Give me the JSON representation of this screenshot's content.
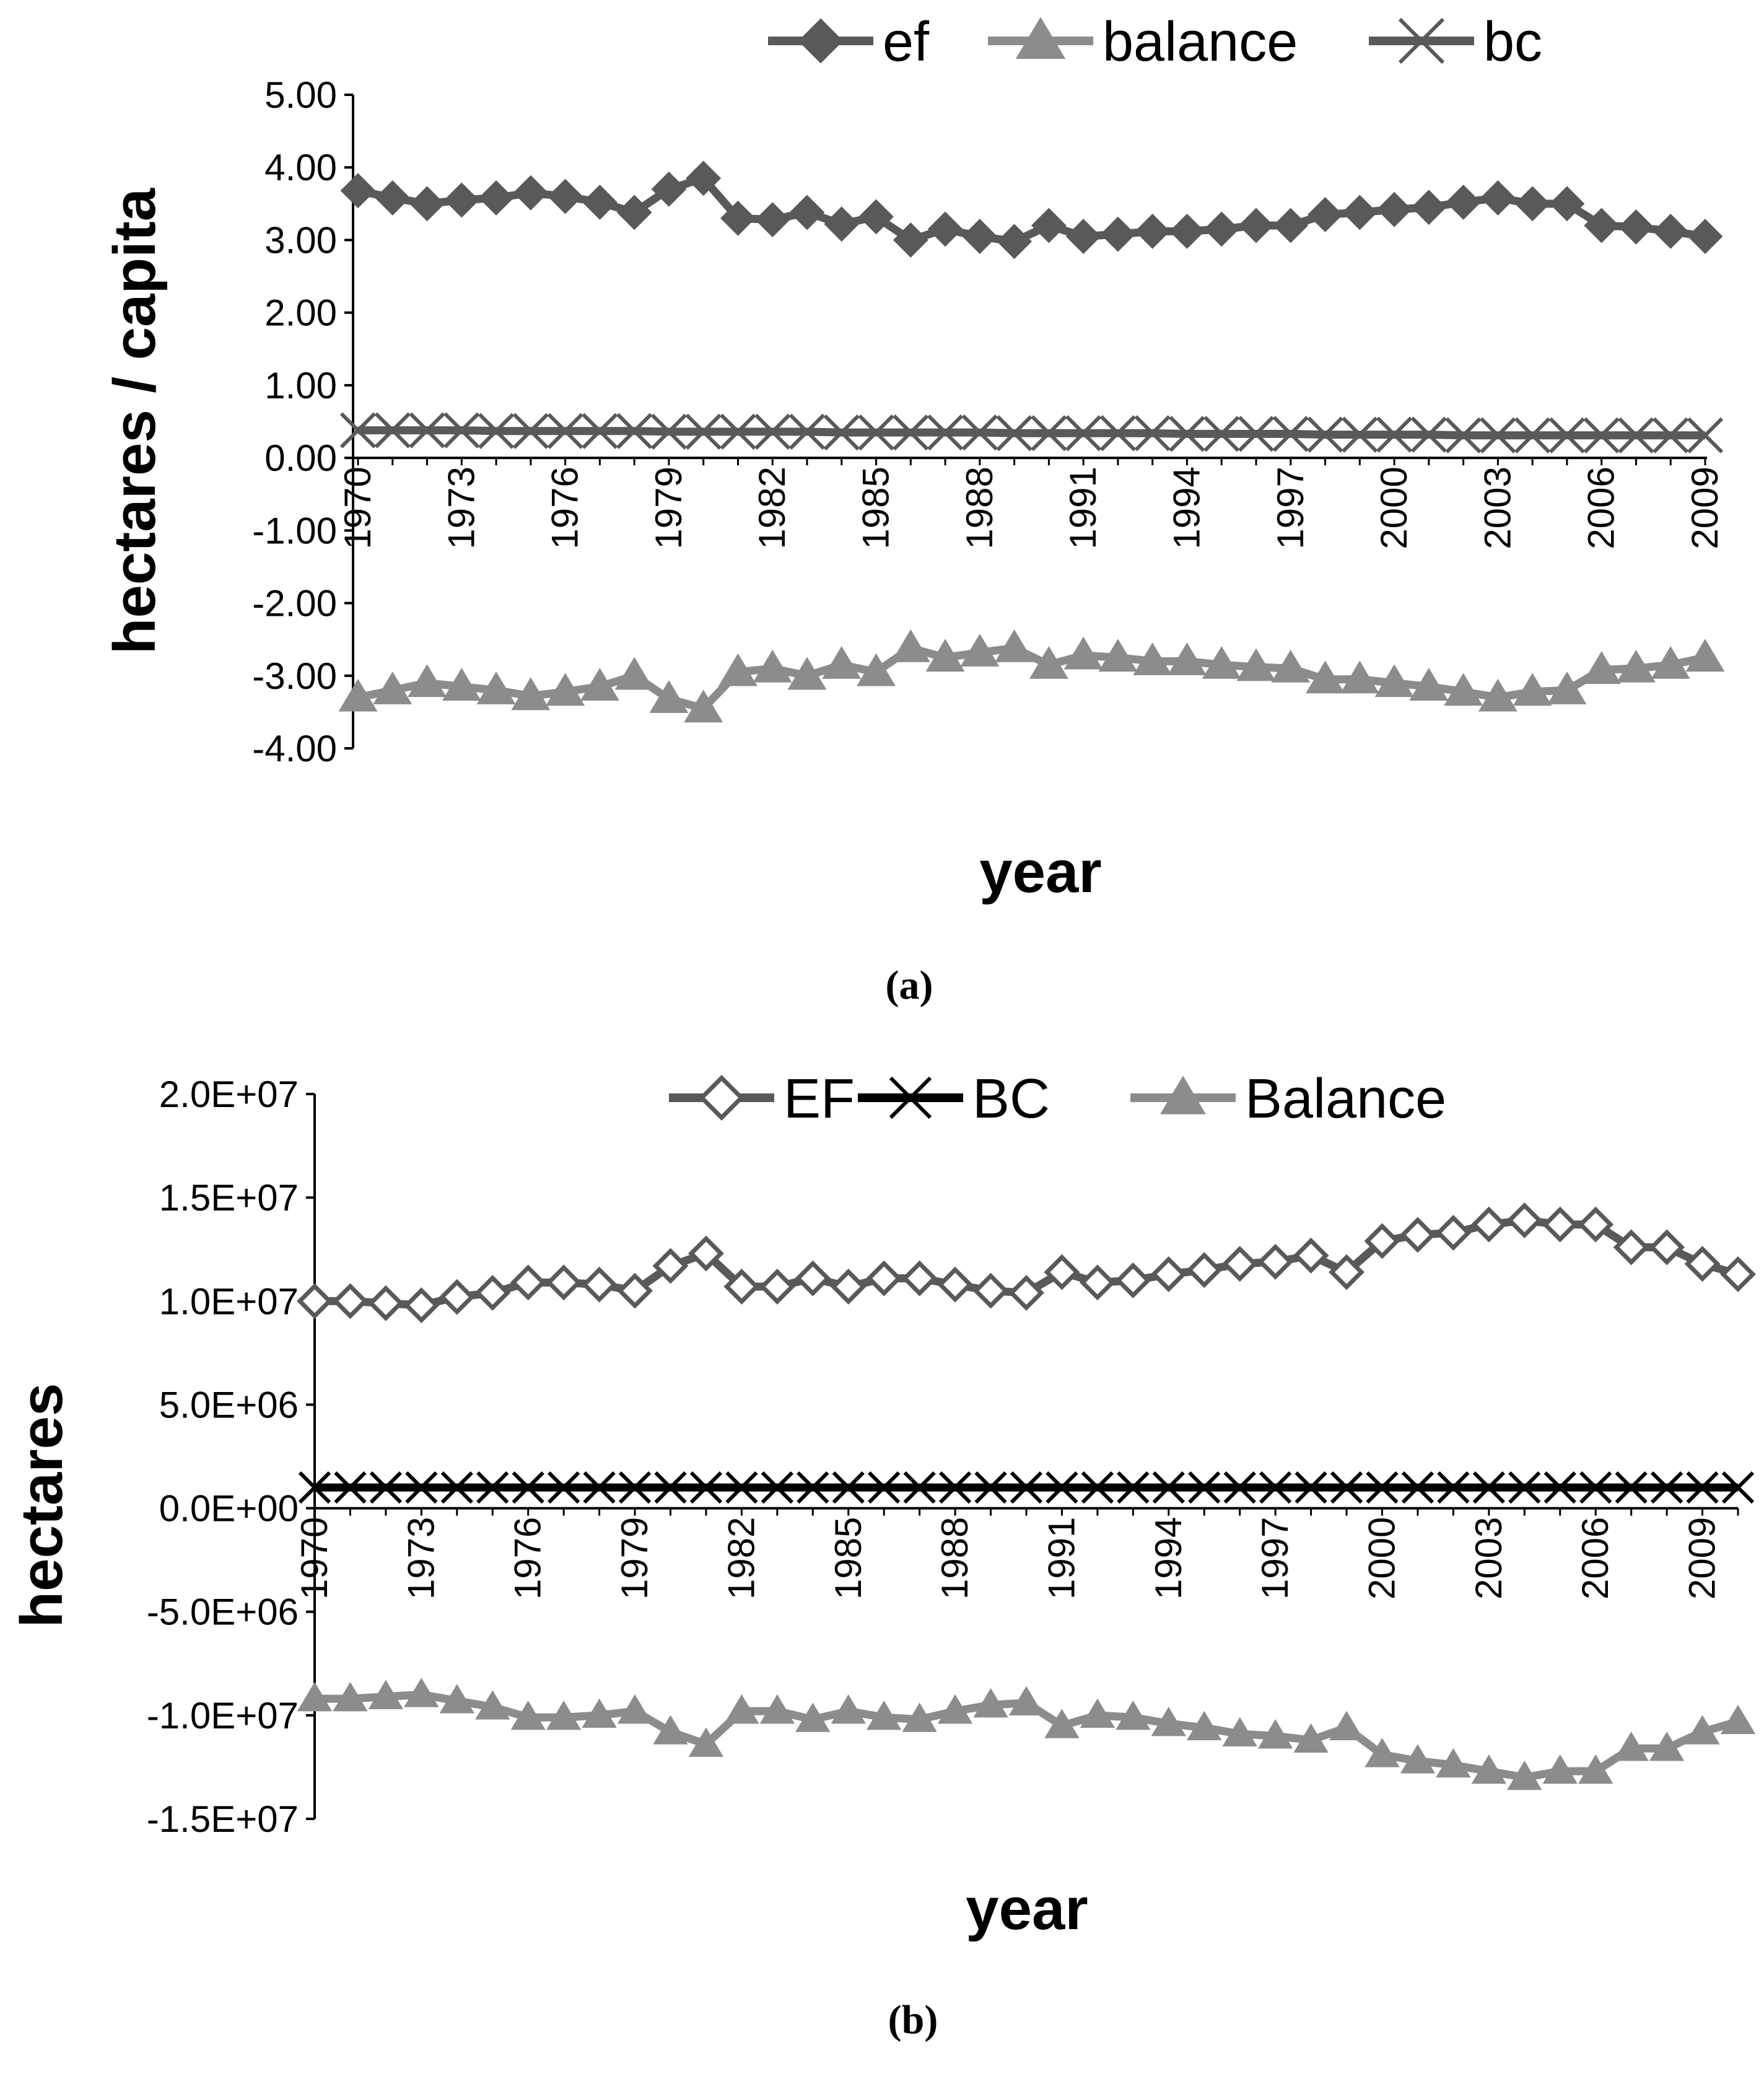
{
  "chart_data": [
    {
      "type": "line",
      "panel_label": "(a)",
      "xlabel": "year",
      "ylabel": "hectares / capita",
      "ylim": [
        -4,
        5
      ],
      "yticks": [
        "5.00",
        "4.00",
        "3.00",
        "2.00",
        "1.00",
        "0.00",
        "-1.00",
        "-2.00",
        "-3.00",
        "-4.00"
      ],
      "xticks": [
        "1970",
        "1973",
        "1976",
        "1979",
        "1982",
        "1985",
        "1988",
        "1991",
        "1994",
        "1997",
        "2000",
        "2003",
        "2006",
        "2009"
      ],
      "x": [
        1970,
        1971,
        1972,
        1973,
        1974,
        1975,
        1976,
        1977,
        1978,
        1979,
        1980,
        1981,
        1982,
        1983,
        1984,
        1985,
        1986,
        1987,
        1988,
        1989,
        1990,
        1991,
        1992,
        1993,
        1994,
        1995,
        1996,
        1997,
        1998,
        1999,
        2000,
        2001,
        2002,
        2003,
        2004,
        2005,
        2006,
        2007,
        2008,
        2009
      ],
      "legend": [
        "ef",
        "balance",
        "bc"
      ],
      "series": [
        {
          "name": "ef",
          "marker": "diamond",
          "color": "#595959",
          "values": [
            3.68,
            3.58,
            3.5,
            3.55,
            3.58,
            3.65,
            3.6,
            3.52,
            3.38,
            3.7,
            3.85,
            3.3,
            3.28,
            3.38,
            3.22,
            3.32,
            3.0,
            3.15,
            3.05,
            2.98,
            3.2,
            3.05,
            3.08,
            3.12,
            3.12,
            3.15,
            3.2,
            3.2,
            3.35,
            3.38,
            3.42,
            3.45,
            3.52,
            3.58,
            3.5,
            3.5,
            3.2,
            3.18,
            3.12,
            3.05
          ]
        },
        {
          "name": "balance",
          "marker": "triangle",
          "color": "#8c8c8c",
          "values": [
            -3.3,
            -3.2,
            -3.1,
            -3.15,
            -3.2,
            -3.28,
            -3.22,
            -3.15,
            -3.0,
            -3.32,
            -3.45,
            -2.95,
            -2.9,
            -3.0,
            -2.85,
            -2.95,
            -2.62,
            -2.75,
            -2.68,
            -2.62,
            -2.85,
            -2.72,
            -2.75,
            -2.8,
            -2.8,
            -2.85,
            -2.88,
            -2.9,
            -3.05,
            -3.05,
            -3.1,
            -3.15,
            -3.22,
            -3.3,
            -3.22,
            -3.2,
            -2.92,
            -2.9,
            -2.85,
            -2.75
          ]
        },
        {
          "name": "bc",
          "marker": "x",
          "color": "#595959",
          "values": [
            0.38,
            0.38,
            0.38,
            0.38,
            0.37,
            0.37,
            0.37,
            0.37,
            0.37,
            0.36,
            0.36,
            0.36,
            0.36,
            0.36,
            0.35,
            0.35,
            0.35,
            0.35,
            0.35,
            0.34,
            0.34,
            0.34,
            0.34,
            0.34,
            0.33,
            0.33,
            0.33,
            0.33,
            0.32,
            0.32,
            0.32,
            0.32,
            0.31,
            0.31,
            0.31,
            0.31,
            0.31,
            0.31,
            0.31,
            0.31
          ]
        }
      ]
    },
    {
      "type": "line",
      "panel_label": "(b)",
      "xlabel": "year",
      "ylabel": "hectares",
      "ylim": [
        -15000000,
        20000000
      ],
      "yticks": [
        "2.0E+07",
        "1.5E+07",
        "1.0E+07",
        "5.0E+06",
        "0.0E+00",
        "-5.0E+06",
        "-1.0E+07",
        "-1.5E+07"
      ],
      "xticks": [
        "1970",
        "1973",
        "1976",
        "1979",
        "1982",
        "1985",
        "1988",
        "1991",
        "1994",
        "1997",
        "2000",
        "2003",
        "2006",
        "2009"
      ],
      "x": [
        1970,
        1971,
        1972,
        1973,
        1974,
        1975,
        1976,
        1977,
        1978,
        1979,
        1980,
        1981,
        1982,
        1983,
        1984,
        1985,
        1986,
        1987,
        1988,
        1989,
        1990,
        1991,
        1992,
        1993,
        1994,
        1995,
        1996,
        1997,
        1998,
        1999,
        2000,
        2001,
        2002,
        2003,
        2004,
        2005,
        2006,
        2007,
        2008,
        2009,
        2010
      ],
      "legend": [
        "EF",
        "BC",
        "Balance"
      ],
      "series": [
        {
          "name": "EF",
          "marker": "diamond-open",
          "color": "#595959",
          "values": [
            10000000,
            10000000,
            9900000,
            9800000,
            10200000,
            10400000,
            10900000,
            10900000,
            10800000,
            10500000,
            11700000,
            12300000,
            10700000,
            10700000,
            11100000,
            10700000,
            11100000,
            11100000,
            10800000,
            10500000,
            10400000,
            11400000,
            10900000,
            11000000,
            11300000,
            11500000,
            11800000,
            11900000,
            12200000,
            11400000,
            12900000,
            13200000,
            13300000,
            13700000,
            13900000,
            13700000,
            13700000,
            12600000,
            12600000,
            11800000,
            11300000
          ]
        },
        {
          "name": "BC",
          "marker": "x",
          "color": "#000000",
          "values": [
            1000000,
            1000000,
            1000000,
            1000000,
            1000000,
            1000000,
            1000000,
            1000000,
            1000000,
            1000000,
            1000000,
            1000000,
            1000000,
            1000000,
            1000000,
            1000000,
            1000000,
            1000000,
            1000000,
            1000000,
            1000000,
            1000000,
            1000000,
            1000000,
            1000000,
            1000000,
            1000000,
            1000000,
            1000000,
            1000000,
            1000000,
            1000000,
            1000000,
            1000000,
            1000000,
            1000000,
            1000000,
            1000000,
            1000000,
            1000000,
            1000000
          ]
        },
        {
          "name": "Balance",
          "marker": "triangle",
          "color": "#8c8c8c",
          "values": [
            -9200000,
            -9200000,
            -9100000,
            -9000000,
            -9300000,
            -9600000,
            -10100000,
            -10100000,
            -10000000,
            -9800000,
            -10800000,
            -11400000,
            -9800000,
            -9800000,
            -10200000,
            -9800000,
            -10100000,
            -10200000,
            -9800000,
            -9500000,
            -9400000,
            -10500000,
            -10000000,
            -10100000,
            -10400000,
            -10600000,
            -10900000,
            -11000000,
            -11200000,
            -10600000,
            -11900000,
            -12200000,
            -12400000,
            -12700000,
            -13000000,
            -12700000,
            -12700000,
            -11600000,
            -11600000,
            -10800000,
            -10300000
          ]
        }
      ]
    }
  ]
}
